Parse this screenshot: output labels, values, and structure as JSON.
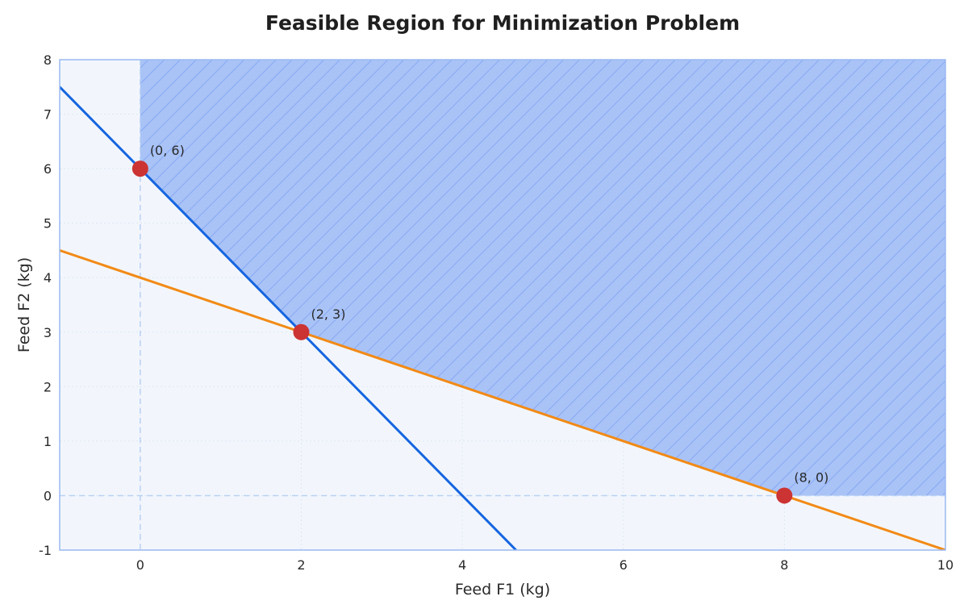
{
  "chart_data": {
    "type": "line",
    "title": "Feasible Region for Minimization Problem",
    "xlabel": "Feed F1 (kg)",
    "ylabel": "Feed F2 (kg)",
    "xlim": [
      -1,
      10
    ],
    "ylim": [
      -1,
      8
    ],
    "x_ticks": [
      0,
      2,
      4,
      6,
      8,
      10
    ],
    "y_ticks": [
      -1,
      0,
      1,
      2,
      3,
      4,
      5,
      6,
      7,
      8
    ],
    "grid": true,
    "series": [
      {
        "color": "#1565e0",
        "x": [
          -1,
          4.667
        ],
        "y": [
          7.5,
          -1
        ]
      },
      {
        "color": "#f28a16",
        "x": [
          -1,
          10
        ],
        "y": [
          4.5,
          -1
        ]
      }
    ],
    "feasible_region": {
      "vertices": [
        [
          0,
          8
        ],
        [
          0,
          6
        ],
        [
          2,
          3
        ],
        [
          8,
          0
        ],
        [
          10,
          0
        ],
        [
          10,
          8
        ]
      ],
      "fill": "#a9c3f7",
      "hatch": "#7a9df0"
    },
    "corner_points": [
      {
        "x": 0,
        "y": 6,
        "label": "(0, 6)"
      },
      {
        "x": 2,
        "y": 3,
        "label": "(2, 3)"
      },
      {
        "x": 8,
        "y": 0,
        "label": "(8, 0)"
      }
    ],
    "point_color": "#cc3333",
    "plot_background": "#f2f6fc",
    "frame_color": "#9ab8f0"
  }
}
